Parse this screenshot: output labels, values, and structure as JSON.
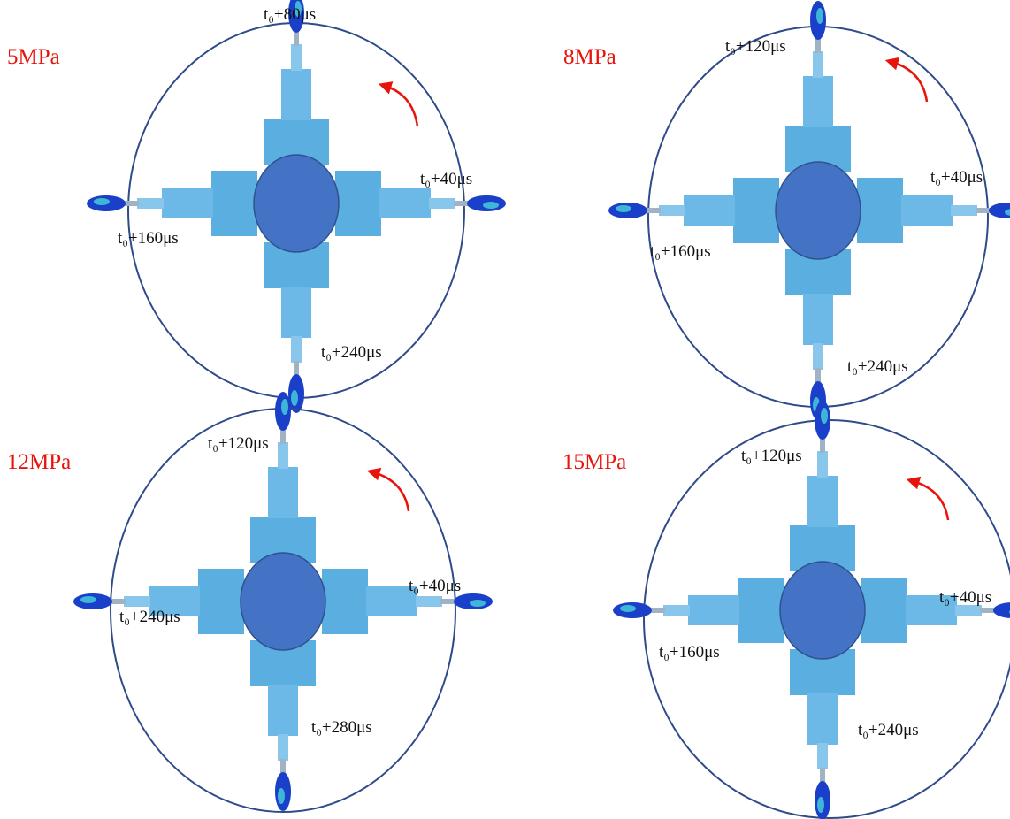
{
  "panels": [
    {
      "pressure": "5MPa",
      "labels": [
        "t₀+80μs",
        "t₀+40μs",
        "t₀+160μs",
        "t₀+240μs"
      ]
    },
    {
      "pressure": "8MPa",
      "labels": [
        "t₀+120μs",
        "t₀+40μs",
        "t₀+160μs",
        "t₀+240μs"
      ]
    },
    {
      "pressure": "12MPa",
      "labels": [
        "t₀+120μs",
        "t₀+40μs",
        "t₀+240μs",
        "t₀+280μs"
      ]
    },
    {
      "pressure": "15MPa",
      "labels": [
        "t₀+120μs",
        "t₀+40μs",
        "t₀+160μs",
        "t₀+240μs"
      ]
    }
  ]
}
